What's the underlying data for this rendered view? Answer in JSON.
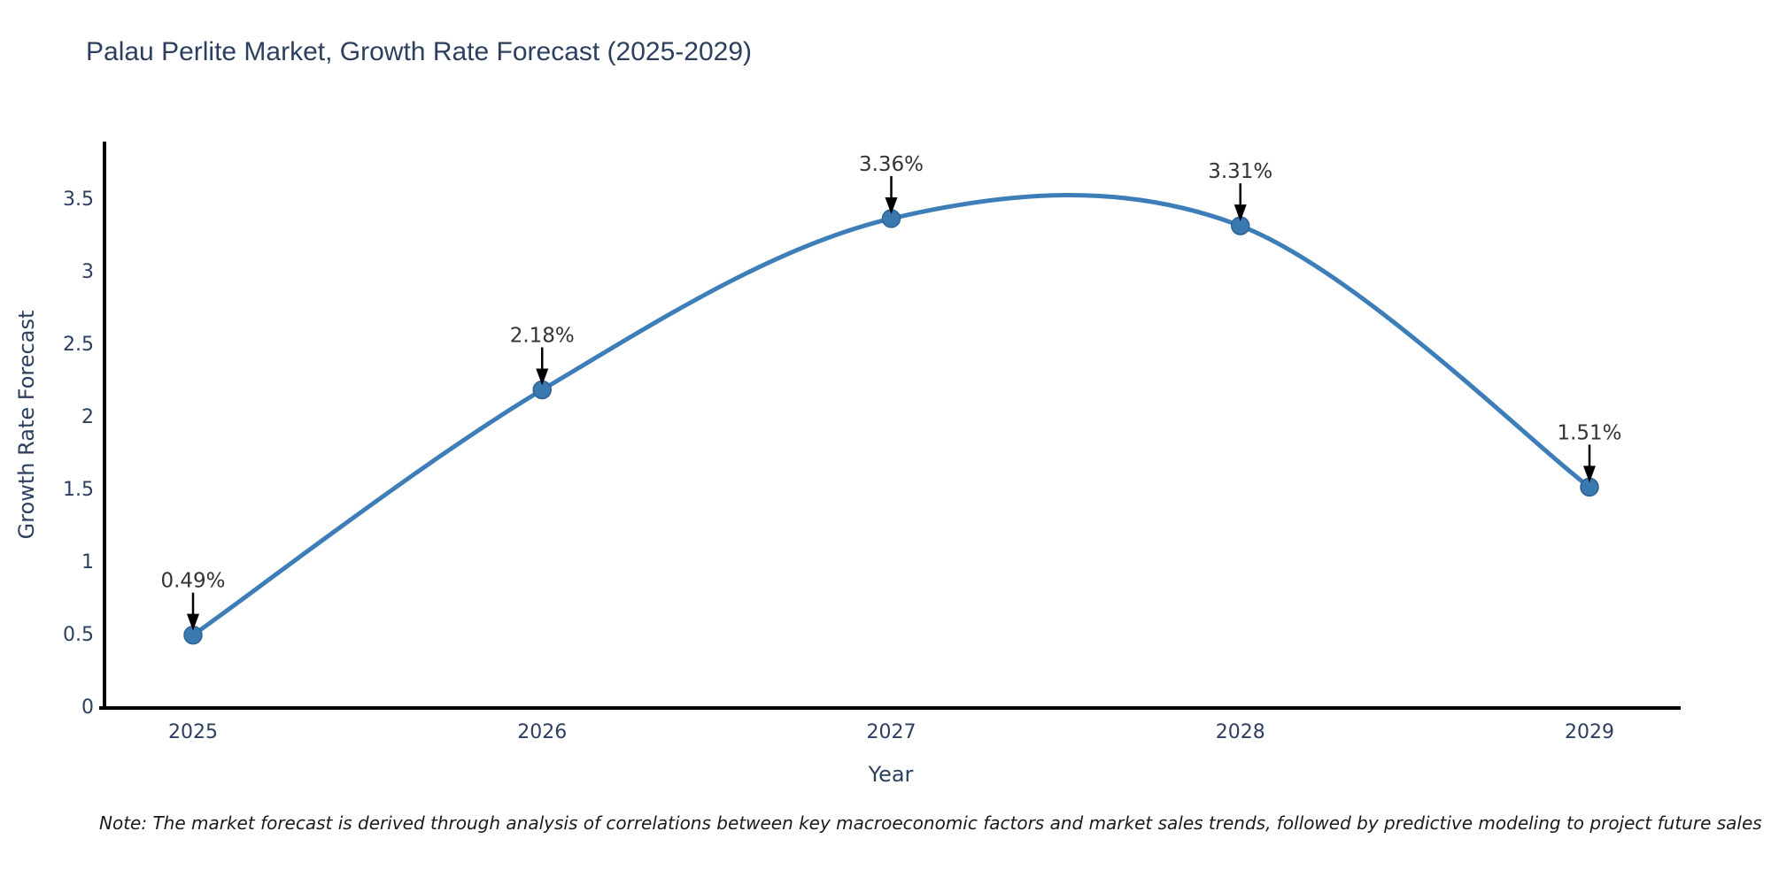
{
  "title": "Palau Perlite Market, Growth Rate Forecast (2025-2029)",
  "note": "Note: The market forecast is derived through analysis of correlations between key macroeconomic factors and market sales trends, followed by predictive modeling to project future sales",
  "chart_data": {
    "type": "line",
    "title": "Palau Perlite Market, Growth Rate Forecast (2025-2029)",
    "x": [
      2025,
      2026,
      2027,
      2028,
      2029
    ],
    "values": [
      0.49,
      2.18,
      3.36,
      3.31,
      1.51
    ],
    "point_labels": [
      "0.49%",
      "2.18%",
      "3.36%",
      "3.31%",
      "1.51%"
    ],
    "xlabel": "Year",
    "ylabel": "Growth Rate Forecast",
    "yticks": [
      0,
      0.5,
      1,
      1.5,
      2,
      2.5,
      3,
      3.5
    ],
    "ylim": [
      0,
      3.9
    ],
    "line_shape": "spline",
    "grid": false,
    "legend_position": "none",
    "colors": {
      "line": "#3d7db8",
      "marker_fill": "#3a78b0",
      "marker_edge": "#2f6396",
      "axis": "#000000",
      "tick_text": "#2d3f5e",
      "annotation_text": "#333333",
      "annotation_arrow": "#000000",
      "title_text": "#2d3f5e",
      "background": "#ffffff"
    }
  }
}
